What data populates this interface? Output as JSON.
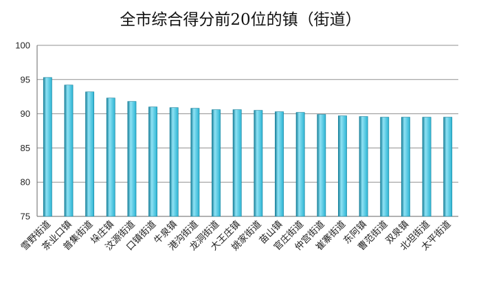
{
  "chart_data": {
    "type": "bar",
    "title": "全市综合得分前20位的镇（街道）",
    "xlabel": "",
    "ylabel": "",
    "ylim": [
      75,
      100
    ],
    "yticks": [
      75,
      80,
      85,
      90,
      95,
      100
    ],
    "grid": true,
    "legend": "none",
    "bar_color": "#2cb4d3",
    "bar_color_dark": "#167f99",
    "bar_color_light": "#8fe2f4",
    "categories": [
      "雪野街道",
      "茶业口镇",
      "普集街道",
      "垛庄镇",
      "汶源街道",
      "口镇街道",
      "牛泉镇",
      "港沟街道",
      "龙洞街道",
      "大王庄镇",
      "姚家街道",
      "苗山镇",
      "官庄街道",
      "仲宫街道",
      "崔寨街道",
      "东阿镇",
      "曹范街道",
      "双泉镇",
      "北坦街道",
      "太平街道"
    ],
    "values": [
      95.3,
      94.2,
      93.2,
      92.3,
      91.8,
      91.0,
      90.9,
      90.8,
      90.6,
      90.6,
      90.5,
      90.3,
      90.2,
      89.9,
      89.7,
      89.6,
      89.5,
      89.5,
      89.5,
      89.5
    ]
  }
}
